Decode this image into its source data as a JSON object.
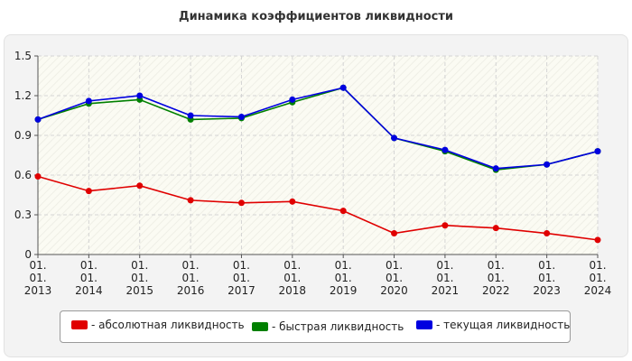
{
  "chart_data": {
    "type": "line",
    "title": "Динамика коэффициентов ликвидности",
    "x": [
      "01.\n01.\n2013",
      "01.\n01.\n2014",
      "01.\n01.\n2015",
      "01.\n01.\n2016",
      "01.\n01.\n2017",
      "01.\n01.\n2018",
      "01.\n01.\n2019",
      "01.\n01.\n2020",
      "01.\n01.\n2021",
      "01.\n01.\n2022",
      "01.\n01.\n2023",
      "01.\n01.\n2024"
    ],
    "ylim": [
      0,
      1.5
    ],
    "yticks": [
      "0",
      "0.3",
      "0.6",
      "0.9",
      "1.2",
      "1.5"
    ],
    "grid": true,
    "legend_position": "bottom",
    "series": [
      {
        "name": "- абсолютная ликвидность",
        "color": "#e00000",
        "values": [
          0.59,
          0.48,
          0.52,
          0.41,
          0.39,
          0.4,
          0.33,
          0.16,
          0.22,
          0.2,
          0.16,
          0.11
        ]
      },
      {
        "name": "- быстрая ликвидность",
        "color": "#008000",
        "values": [
          1.02,
          1.14,
          1.17,
          1.02,
          1.03,
          1.15,
          1.26,
          0.88,
          0.78,
          0.64,
          0.68,
          0.78
        ]
      },
      {
        "name": "- текущая ликвидность",
        "color": "#0000e0",
        "values": [
          1.02,
          1.16,
          1.2,
          1.05,
          1.04,
          1.17,
          1.26,
          0.88,
          0.79,
          0.65,
          0.68,
          0.78
        ]
      }
    ]
  }
}
